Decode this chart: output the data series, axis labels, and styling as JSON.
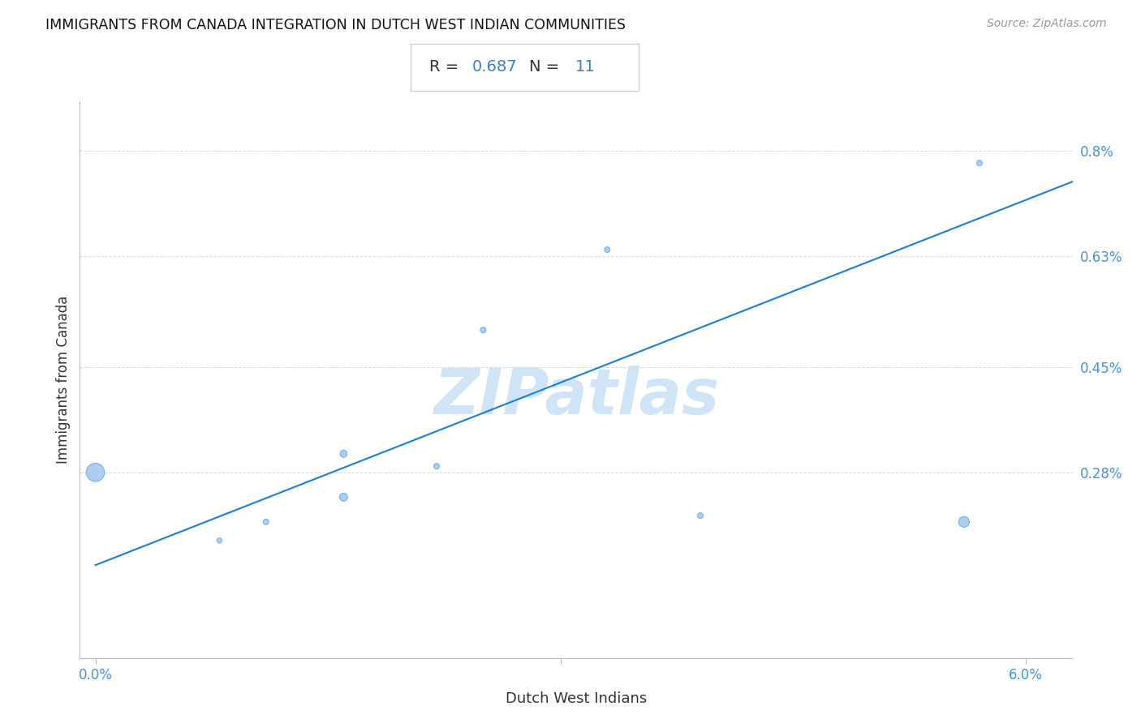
{
  "title": "IMMIGRANTS FROM CANADA INTEGRATION IN DUTCH WEST INDIAN COMMUNITIES",
  "source": "Source: ZipAtlas.com",
  "xlabel": "Dutch West Indians",
  "ylabel": "Immigrants from Canada",
  "R": 0.687,
  "N": 11,
  "xlim": [
    -0.001,
    0.063
  ],
  "ylim": [
    -0.0002,
    0.0088
  ],
  "x_ticks": [
    0.0,
    0.03,
    0.06
  ],
  "x_tick_labels": [
    "0.0%",
    "",
    "6.0%"
  ],
  "y_ticks": [
    0.0028,
    0.0045,
    0.0063,
    0.008
  ],
  "y_tick_labels": [
    "0.28%",
    "0.45%",
    "0.63%",
    "0.8%"
  ],
  "scatter_x": [
    0.0,
    0.008,
    0.011,
    0.016,
    0.016,
    0.022,
    0.025,
    0.033,
    0.039,
    0.056,
    0.057
  ],
  "scatter_y": [
    0.0028,
    0.0017,
    0.002,
    0.0024,
    0.0031,
    0.0029,
    0.0051,
    0.0064,
    0.0021,
    0.002,
    0.0078
  ],
  "scatter_sizes": [
    260,
    20,
    25,
    50,
    40,
    25,
    25,
    25,
    25,
    90,
    25
  ],
  "line_x0": 0.0,
  "line_y0": 0.0013,
  "line_x1": 0.063,
  "line_y1": 0.0075,
  "line_color": "#1a7fd4",
  "scatter_color": "#a8c8f0",
  "scatter_edge_color": "#6aaee8",
  "bg_color": "#ffffff",
  "grid_color": "#d8d8d8",
  "tick_color": "#4a90d9",
  "label_color": "#333333",
  "title_color": "#111111",
  "source_color": "#999999",
  "watermark": "ZIPatlas",
  "watermark_color": "#d0e4f7",
  "ann_R_label": "R = ",
  "ann_R_value": "0.687",
  "ann_N_label": "   N = ",
  "ann_N_value": "11",
  "ann_color_label": "#333333",
  "ann_color_value": "#3a80d0"
}
